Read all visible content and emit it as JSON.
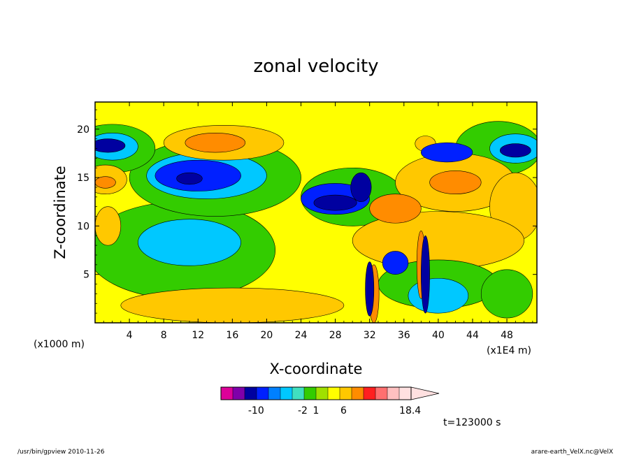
{
  "chart_data": {
    "type": "heatmap",
    "title": "zonal velocity",
    "xlabel": "X-coordinate",
    "ylabel": "Z-coordinate",
    "x_unit_label": "(x1E4 m)",
    "y_unit_label": "(x1000 m)",
    "xlim": [
      0,
      51.5
    ],
    "ylim": [
      0,
      22.8
    ],
    "x_ticks": [
      4,
      8,
      12,
      16,
      20,
      24,
      28,
      32,
      36,
      40,
      44,
      48
    ],
    "y_ticks": [
      5,
      10,
      15,
      20
    ],
    "colorbar": {
      "colors": [
        "#dd0099",
        "#7f00aa",
        "#0000a0",
        "#0020ff",
        "#0080ff",
        "#00c8ff",
        "#40e0c0",
        "#33cc00",
        "#a0e000",
        "#ffff00",
        "#ffc800",
        "#ff8c00",
        "#ff2020",
        "#ff7070",
        "#ffc0c0",
        "#ffe0e0"
      ],
      "tick_labels": [
        "-10",
        "-2",
        "1",
        "6",
        "18.4"
      ]
    },
    "time_label": "t=123000 s",
    "field": {
      "background_color": "#ffff00",
      "regions": [
        {
          "color": "#33cc00",
          "cx": 10,
          "cy": 7.5,
          "rx": 11,
          "ry": 5
        },
        {
          "color": "#00c8ff",
          "cx": 11,
          "cy": 8.3,
          "rx": 6,
          "ry": 2.4
        },
        {
          "color": "#33cc00",
          "cx": 14,
          "cy": 15,
          "rx": 10,
          "ry": 4
        },
        {
          "color": "#00c8ff",
          "cx": 13,
          "cy": 15.2,
          "rx": 7,
          "ry": 2.4
        },
        {
          "color": "#0020ff",
          "cx": 12,
          "cy": 15.2,
          "rx": 5,
          "ry": 1.6
        },
        {
          "color": "#0000a0",
          "cx": 11,
          "cy": 14.9,
          "rx": 1.5,
          "ry": 0.6
        },
        {
          "color": "#33cc00",
          "cx": 30,
          "cy": 13,
          "rx": 6,
          "ry": 3
        },
        {
          "color": "#0020ff",
          "cx": 28,
          "cy": 12.8,
          "rx": 4,
          "ry": 1.6
        },
        {
          "color": "#0000a0",
          "cx": 28,
          "cy": 12.4,
          "rx": 2.5,
          "ry": 0.8
        },
        {
          "color": "#ffc800",
          "cx": 15,
          "cy": 18.6,
          "rx": 7,
          "ry": 1.8
        },
        {
          "color": "#ff8c00",
          "cx": 14,
          "cy": 18.6,
          "rx": 3.5,
          "ry": 1
        },
        {
          "color": "#33cc00",
          "cx": 2,
          "cy": 18,
          "rx": 5,
          "ry": 2.5
        },
        {
          "color": "#00c8ff",
          "cx": 2,
          "cy": 18.2,
          "rx": 3,
          "ry": 1.4
        },
        {
          "color": "#0000a0",
          "cx": 1.5,
          "cy": 18.3,
          "rx": 2,
          "ry": 0.7
        },
        {
          "color": "#ffc800",
          "cx": 1.2,
          "cy": 14.8,
          "rx": 2.5,
          "ry": 1.5
        },
        {
          "color": "#ff8c00",
          "cx": 1.2,
          "cy": 14.5,
          "rx": 1.2,
          "ry": 0.6
        },
        {
          "color": "#33cc00",
          "cx": 47,
          "cy": 18,
          "rx": 5,
          "ry": 2.8
        },
        {
          "color": "#00c8ff",
          "cx": 49,
          "cy": 18,
          "rx": 3,
          "ry": 1.5
        },
        {
          "color": "#0000a0",
          "cx": 49,
          "cy": 17.8,
          "rx": 1.8,
          "ry": 0.7
        },
        {
          "color": "#ffc800",
          "cx": 42,
          "cy": 14.5,
          "rx": 7,
          "ry": 3
        },
        {
          "color": "#ff8c00",
          "cx": 42,
          "cy": 14.5,
          "rx": 3,
          "ry": 1.2
        },
        {
          "color": "#ffc800",
          "cx": 49,
          "cy": 12,
          "rx": 3,
          "ry": 3.5
        },
        {
          "color": "#ffc800",
          "cx": 40,
          "cy": 8.5,
          "rx": 10,
          "ry": 3
        },
        {
          "color": "#33cc00",
          "cx": 40,
          "cy": 4,
          "rx": 7,
          "ry": 2.5
        },
        {
          "color": "#00c8ff",
          "cx": 40,
          "cy": 2.8,
          "rx": 3.5,
          "ry": 1.8
        },
        {
          "color": "#0020ff",
          "cx": 35,
          "cy": 6.2,
          "rx": 1.5,
          "ry": 1.2
        },
        {
          "color": "#ffc800",
          "cx": 16,
          "cy": 1.8,
          "rx": 13,
          "ry": 1.8
        },
        {
          "color": "#ffc800",
          "cx": 38.5,
          "cy": 18.5,
          "rx": 1.2,
          "ry": 0.8
        },
        {
          "color": "#0020ff",
          "cx": 41,
          "cy": 17.6,
          "rx": 3,
          "ry": 1
        },
        {
          "color": "#33cc00",
          "cx": 48,
          "cy": 3,
          "rx": 3,
          "ry": 2.5
        },
        {
          "color": "#ffc800",
          "cx": 1.5,
          "cy": 10,
          "rx": 1.5,
          "ry": 2
        },
        {
          "color": "#ff8c00",
          "cx": 32.5,
          "cy": 3,
          "rx": 0.6,
          "ry": 3
        },
        {
          "color": "#0000a0",
          "cx": 32,
          "cy": 3.5,
          "rx": 0.5,
          "ry": 2.8
        },
        {
          "color": "#0000a0",
          "cx": 31,
          "cy": 14,
          "rx": 1.2,
          "ry": 1.5
        },
        {
          "color": "#ff8c00",
          "cx": 38,
          "cy": 6,
          "rx": 0.5,
          "ry": 3.5
        },
        {
          "color": "#0000a0",
          "cx": 38.5,
          "cy": 5,
          "rx": 0.5,
          "ry": 4
        },
        {
          "color": "#ff8c00",
          "cx": 35,
          "cy": 11.8,
          "rx": 3,
          "ry": 1.5
        }
      ]
    }
  },
  "footer": {
    "left": "/usr/bin/gpview   2010-11-26",
    "right": "arare-earth_VelX.nc@VelX"
  }
}
